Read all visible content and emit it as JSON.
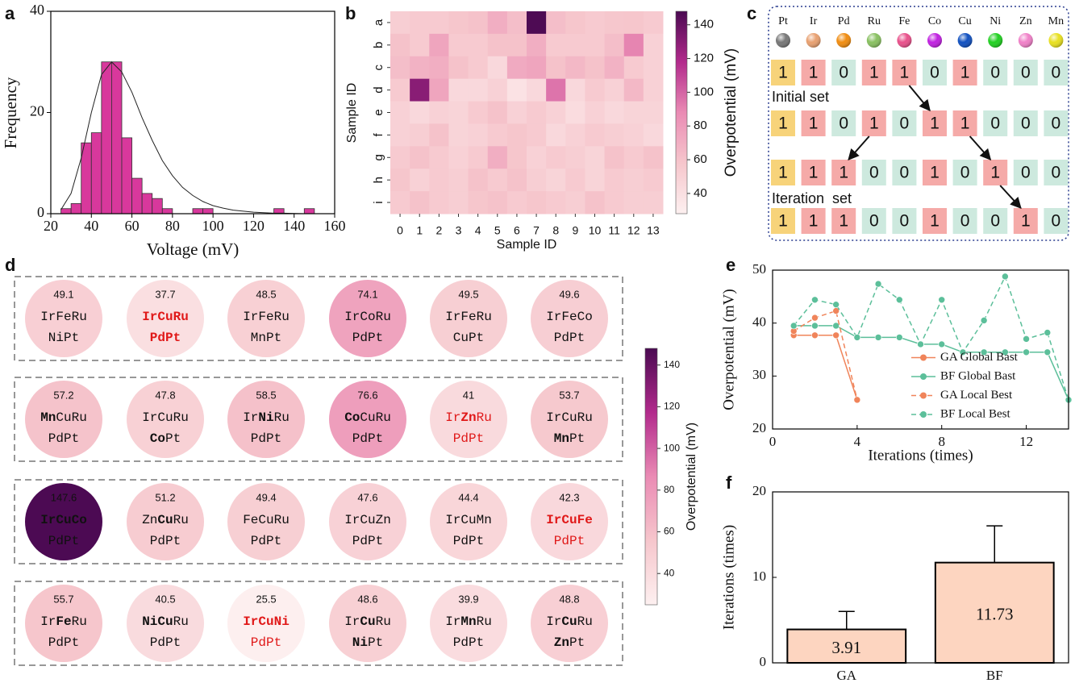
{
  "chart_data": [
    {
      "type": "histogram",
      "panel": "a",
      "xlabel": "Voltage (mV)",
      "ylabel": "Frequency",
      "bins": [
        25,
        30,
        35,
        40,
        45,
        50,
        55,
        60,
        65,
        70,
        75,
        80,
        85,
        90,
        95,
        100,
        105,
        110,
        115,
        120,
        125,
        130,
        135,
        140,
        145,
        150
      ],
      "values": [
        1,
        2,
        14,
        16,
        30,
        30,
        15,
        7,
        4,
        3,
        1,
        0,
        0,
        1,
        1,
        0,
        0,
        0,
        0,
        0,
        0,
        1,
        0,
        0,
        1
      ],
      "color": "#d8389c",
      "fit": {
        "x": [
          25,
          30,
          35,
          40,
          45,
          50,
          55,
          60,
          65,
          70,
          75,
          80,
          85,
          90,
          95,
          100,
          105,
          110,
          115,
          120,
          125,
          130,
          135,
          140,
          145,
          150,
          155,
          160
        ],
        "values": [
          0.8,
          4,
          11,
          20,
          27.5,
          30,
          28,
          24,
          19,
          14.5,
          10.5,
          7.5,
          5.2,
          3.6,
          2.4,
          1.6,
          1.1,
          0.7,
          0.5,
          0.3,
          0.2,
          0.1,
          0.1,
          0.05,
          0,
          0,
          0,
          0
        ],
        "color": "#222222"
      },
      "xlim": [
        20,
        160
      ],
      "xticks": [
        20,
        40,
        60,
        80,
        100,
        120,
        140,
        160
      ],
      "ylim": [
        0,
        40
      ],
      "yticks": [
        0,
        20,
        40
      ]
    },
    {
      "type": "heatmap",
      "panel": "b",
      "xlabel": "Sample ID",
      "ylabel": "Sample ID",
      "colorbar_label": "Overpotential (mV)",
      "categories": [
        0,
        1,
        2,
        3,
        4,
        5,
        6,
        7,
        8,
        9,
        10,
        11,
        12,
        13
      ],
      "row_categories": [
        "a",
        "b",
        "c",
        "d",
        "e",
        "f",
        "g",
        "h",
        "i"
      ],
      "values": [
        [
          52,
          55,
          55,
          58,
          60,
          70,
          62,
          147,
          62,
          58,
          55,
          57,
          58,
          55
        ],
        [
          60,
          55,
          75,
          55,
          55,
          60,
          60,
          70,
          55,
          55,
          55,
          62,
          90,
          50
        ],
        [
          62,
          68,
          70,
          60,
          55,
          45,
          72,
          75,
          60,
          65,
          60,
          68,
          55,
          50
        ],
        [
          55,
          130,
          75,
          45,
          45,
          50,
          38,
          45,
          95,
          45,
          55,
          50,
          65,
          50
        ],
        [
          50,
          45,
          50,
          48,
          55,
          60,
          50,
          55,
          50,
          42,
          50,
          45,
          48,
          48
        ],
        [
          50,
          52,
          60,
          48,
          50,
          55,
          58,
          55,
          45,
          50,
          55,
          52,
          50,
          45
        ],
        [
          55,
          60,
          55,
          50,
          55,
          70,
          58,
          50,
          55,
          52,
          48,
          60,
          55,
          60
        ],
        [
          58,
          50,
          55,
          52,
          60,
          55,
          60,
          52,
          48,
          55,
          48,
          55,
          52,
          55
        ],
        [
          55,
          60,
          55,
          52,
          58,
          60,
          55,
          58,
          55,
          52,
          60,
          55,
          52,
          52
        ]
      ],
      "colormap": [
        "#fdf0f0",
        "#f6c6cc",
        "#ea8bb4",
        "#b22a8c",
        "#4b0a52"
      ],
      "clim": [
        28,
        148
      ],
      "cticks": [
        40,
        60,
        80,
        100,
        120,
        140
      ]
    },
    {
      "type": "circle_grid",
      "panel": "d",
      "colorbar_label": "Overpotential (mV)",
      "colormap": [
        "#fdf0f0",
        "#f6c6cc",
        "#ea8bb4",
        "#b22a8c",
        "#4b0a52"
      ],
      "clim": [
        25,
        148
      ],
      "cticks": [
        40,
        60,
        80,
        100,
        120,
        140
      ],
      "items": [
        {
          "value": 49.1,
          "top": [
            {
              "text": "IrFeRu"
            }
          ],
          "bottom": [
            {
              "text": "NiPt"
            }
          ]
        },
        {
          "value": 37.7,
          "top": [
            {
              "text": "IrCuRu",
              "bold": true
            }
          ],
          "bottom": [
            {
              "text": "PdPt",
              "bold": true
            }
          ],
          "text_color": "#e01818"
        },
        {
          "value": 48.5,
          "top": [
            {
              "text": "IrFeRu"
            }
          ],
          "bottom": [
            {
              "text": "MnPt"
            }
          ]
        },
        {
          "value": 74.1,
          "top": [
            {
              "text": "IrCoRu"
            }
          ],
          "bottom": [
            {
              "text": "PdPt"
            }
          ]
        },
        {
          "value": 49.5,
          "top": [
            {
              "text": "IrFeRu"
            }
          ],
          "bottom": [
            {
              "text": "CuPt"
            }
          ]
        },
        {
          "value": 49.6,
          "top": [
            {
              "text": "IrFeCo"
            }
          ],
          "bottom": [
            {
              "text": "PdPt"
            }
          ]
        },
        {
          "value": 57.2,
          "top": [
            {
              "text": "Mn",
              "bold": true
            },
            {
              "text": "CuRu"
            }
          ],
          "bottom": [
            {
              "text": "PdPt"
            }
          ]
        },
        {
          "value": 47.8,
          "top": [
            {
              "text": "IrCuRu"
            }
          ],
          "bottom": [
            {
              "text": "Co",
              "bold": true
            },
            {
              "text": "Pt"
            }
          ]
        },
        {
          "value": 58.5,
          "top": [
            {
              "text": "Ir"
            },
            {
              "text": "Ni",
              "bold": true
            },
            {
              "text": "Ru"
            }
          ],
          "bottom": [
            {
              "text": "PdPt"
            }
          ]
        },
        {
          "value": 76.6,
          "top": [
            {
              "text": "Co",
              "bold": true
            },
            {
              "text": "CuRu"
            }
          ],
          "bottom": [
            {
              "text": "PdPt"
            }
          ]
        },
        {
          "value": 41.0,
          "top": [
            {
              "text": "Ir"
            },
            {
              "text": "Zn",
              "bold": true
            },
            {
              "text": "Ru"
            }
          ],
          "bottom": [
            {
              "text": "PdPt"
            }
          ],
          "text_color": "#e01818"
        },
        {
          "value": 53.7,
          "top": [
            {
              "text": "IrCuRu"
            }
          ],
          "bottom": [
            {
              "text": "Mn",
              "bold": true
            },
            {
              "text": "Pt"
            }
          ]
        },
        {
          "value": 147.6,
          "top": [
            {
              "text": "IrCuCo",
              "bold": true
            }
          ],
          "bottom": [
            {
              "text": "PdPt"
            }
          ]
        },
        {
          "value": 51.2,
          "top": [
            {
              "text": "Zn"
            },
            {
              "text": "Cu",
              "bold": true
            },
            {
              "text": "Ru"
            }
          ],
          "bottom": [
            {
              "text": "PdPt"
            }
          ]
        },
        {
          "value": 49.4,
          "top": [
            {
              "text": "FeCuRu"
            }
          ],
          "bottom": [
            {
              "text": "PdPt"
            }
          ]
        },
        {
          "value": 47.6,
          "top": [
            {
              "text": "IrCuZn"
            }
          ],
          "bottom": [
            {
              "text": "PdPt"
            }
          ]
        },
        {
          "value": 44.4,
          "top": [
            {
              "text": "IrCuMn"
            }
          ],
          "bottom": [
            {
              "text": "PdPt"
            }
          ]
        },
        {
          "value": 42.3,
          "top": [
            {
              "text": "IrCuFe",
              "bold": true
            }
          ],
          "bottom": [
            {
              "text": "PdPt"
            }
          ],
          "text_color": "#e01818"
        },
        {
          "value": 55.7,
          "top": [
            {
              "text": "Ir"
            },
            {
              "text": "Fe",
              "bold": true
            },
            {
              "text": "Ru"
            }
          ],
          "bottom": [
            {
              "text": "PdPt"
            }
          ]
        },
        {
          "value": 40.5,
          "top": [
            {
              "text": "NiCu",
              "bold": true
            },
            {
              "text": "Ru"
            }
          ],
          "bottom": [
            {
              "text": "PdPt"
            }
          ]
        },
        {
          "value": 25.5,
          "top": [
            {
              "text": "IrCuNi",
              "bold": true
            }
          ],
          "bottom": [
            {
              "text": "PdPt"
            }
          ],
          "text_color": "#e01818"
        },
        {
          "value": 48.6,
          "top": [
            {
              "text": "Ir"
            },
            {
              "text": "Cu",
              "bold": true
            },
            {
              "text": "Ru"
            }
          ],
          "bottom": [
            {
              "text": "Ni",
              "bold": true
            },
            {
              "text": "Pt"
            }
          ]
        },
        {
          "value": 39.9,
          "top": [
            {
              "text": "Ir"
            },
            {
              "text": "Mn",
              "bold": true
            },
            {
              "text": "Ru"
            }
          ],
          "bottom": [
            {
              "text": "PdPt"
            }
          ]
        },
        {
          "value": 48.8,
          "top": [
            {
              "text": "Ir"
            },
            {
              "text": "Cu",
              "bold": true
            },
            {
              "text": "Ru"
            }
          ],
          "bottom": [
            {
              "text": "Zn",
              "bold": true
            },
            {
              "text": "Pt"
            }
          ]
        }
      ]
    },
    {
      "type": "line",
      "panel": "e",
      "xlabel": "Iterations (times)",
      "ylabel": "Overpotential (mV)",
      "xlim": [
        0,
        14
      ],
      "xticks": [
        0,
        4,
        8,
        12
      ],
      "ylim": [
        20,
        50
      ],
      "yticks": [
        20,
        30,
        40,
        50
      ],
      "legend": "lower right",
      "series": [
        {
          "name": "GA Global Bast",
          "color": "#f0845a",
          "dashed": false,
          "x": [
            1,
            2,
            3,
            4
          ],
          "values": [
            37.7,
            37.7,
            37.7,
            25.5
          ]
        },
        {
          "name": "BF Global Bast",
          "color": "#5cbf9a",
          "dashed": false,
          "x": [
            1,
            2,
            3,
            4,
            5,
            6,
            7,
            8,
            9,
            10,
            11,
            12,
            13,
            14
          ],
          "values": [
            39.5,
            39.5,
            39.5,
            37.3,
            37.3,
            37.3,
            36,
            36,
            34.5,
            34.5,
            34.5,
            34.5,
            34.5,
            25.5
          ]
        },
        {
          "name": "GA Local Best",
          "color": "#f0845a",
          "dashed": true,
          "x": [
            1,
            2,
            3,
            4
          ],
          "values": [
            38.5,
            41,
            42.3,
            25.5
          ]
        },
        {
          "name": "BF Local Best",
          "color": "#5cbf9a",
          "dashed": true,
          "x": [
            1,
            2,
            3,
            4,
            5,
            6,
            7,
            8,
            9,
            10,
            11,
            12,
            13,
            14
          ],
          "values": [
            39.5,
            44.4,
            43.5,
            37.3,
            47.4,
            44.4,
            36,
            44.4,
            34.5,
            40.5,
            48.8,
            37,
            38.2,
            25.5
          ]
        }
      ]
    },
    {
      "type": "bar",
      "panel": "f",
      "ylabel": "Iterations (times)",
      "categories": [
        "GA",
        "BF"
      ],
      "values": [
        3.91,
        11.73
      ],
      "errors": [
        2.1,
        4.3
      ],
      "color": "#fdd5c0",
      "ylim": [
        0,
        20
      ],
      "yticks": [
        0,
        10,
        20
      ]
    }
  ],
  "diagram": {
    "panel": "c",
    "elements": [
      {
        "name": "Pt",
        "color": "#777777"
      },
      {
        "name": "Ir",
        "color": "#e8a070"
      },
      {
        "name": "Pd",
        "color": "#f08c10"
      },
      {
        "name": "Ru",
        "color": "#88c060"
      },
      {
        "name": "Fe",
        "color": "#e8508a"
      },
      {
        "name": "Co",
        "color": "#c020e0"
      },
      {
        "name": "Cu",
        "color": "#1050c0"
      },
      {
        "name": "Ni",
        "color": "#20d020"
      },
      {
        "name": "Zn",
        "color": "#f080c8"
      },
      {
        "name": "Mn",
        "color": "#e8e020"
      }
    ],
    "rows": [
      [
        1,
        1,
        0,
        1,
        1,
        0,
        1,
        0,
        0,
        0
      ],
      [
        1,
        1,
        0,
        1,
        0,
        1,
        1,
        0,
        0,
        0
      ],
      [
        1,
        1,
        1,
        0,
        0,
        1,
        0,
        1,
        0,
        0
      ],
      [
        1,
        1,
        1,
        0,
        0,
        1,
        0,
        0,
        1,
        0
      ]
    ],
    "row_labels": [
      "Initial set",
      "Iteration  set"
    ],
    "first_color": "#f7d37a",
    "one_color": "#f5aaa8",
    "zero_color": "#cde9de"
  }
}
